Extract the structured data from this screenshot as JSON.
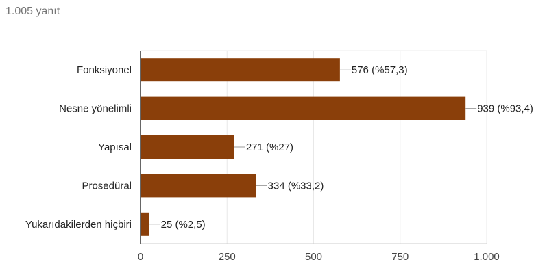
{
  "header": {
    "response_count": "1.005 yanıt"
  },
  "chart_data": {
    "type": "bar",
    "orientation": "horizontal",
    "categories": [
      "Fonksiyonel",
      "Nesne yönelimli",
      "Yapısal",
      "Prosedüral",
      "Yukarıdakilerden hiçbiri"
    ],
    "values": [
      576,
      939,
      271,
      334,
      25
    ],
    "data_labels": [
      "576 (%57,3)",
      "939 (%93,4)",
      "271 (%27)",
      "334 (%33,2)",
      "25 (%2,5)"
    ],
    "x_ticks": [
      0,
      250,
      500,
      750,
      1000
    ],
    "x_tick_labels": [
      "0",
      "250",
      "500",
      "750",
      "1.000"
    ],
    "xlim": [
      0,
      1000
    ],
    "grid": true,
    "legend": "none",
    "bar_color": "#8a3f0a"
  }
}
